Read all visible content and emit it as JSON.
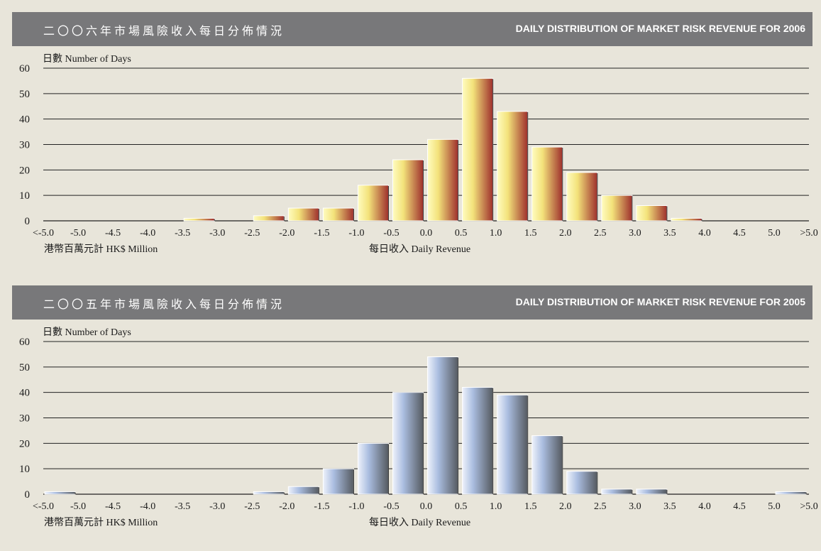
{
  "charts": [
    {
      "title_zh": "二〇〇六年市場風險收入每日分佈情況",
      "title_en": "DAILY DISTRIBUTION OF MARKET RISK REVENUE FOR 2006",
      "ylabel": "日數 Number of Days",
      "xlabel_left": "港幣百萬元計 HK$ Million",
      "xlabel_center": "每日收入 Daily Revenue"
    },
    {
      "title_zh": "二〇〇五年市場風險收入每日分佈情況",
      "title_en": "DAILY DISTRIBUTION OF MARKET RISK REVENUE FOR 2005",
      "ylabel": "日數 Number of Days",
      "xlabel_left": "港幣百萬元計 HK$ Million",
      "xlabel_center": "每日收入 Daily Revenue"
    }
  ],
  "chart_data": [
    {
      "type": "bar",
      "title": "DAILY DISTRIBUTION OF MARKET RISK REVENUE FOR 2006",
      "ylabel": "日數 Number of Days",
      "xlabel": "每日收入 Daily Revenue",
      "x_ticks": [
        "<-5.0",
        "-5.0",
        "-4.5",
        "-4.0",
        "-3.5",
        "-3.0",
        "-2.5",
        "-2.0",
        "-1.5",
        "-1.0",
        "-0.5",
        "0.0",
        "0.5",
        "1.0",
        "1.5",
        "2.0",
        "2.5",
        "3.0",
        "3.5",
        "4.0",
        "4.5",
        "5.0",
        ">5.0"
      ],
      "values": [
        0,
        0,
        0,
        0,
        1,
        0,
        2,
        5,
        5,
        14,
        24,
        32,
        56,
        43,
        29,
        19,
        10,
        6,
        1,
        0,
        0,
        0
      ],
      "ylim": [
        0,
        60
      ],
      "yticks": [
        0,
        10,
        20,
        30,
        40,
        50,
        60
      ],
      "grid": true,
      "colors": {
        "light": "#fffcc0",
        "mid": "#f3e27a",
        "dark": "#9e2f2c"
      }
    },
    {
      "type": "bar",
      "title": "DAILY DISTRIBUTION OF MARKET RISK REVENUE FOR 2005",
      "ylabel": "日數 Number of Days",
      "xlabel": "每日收入 Daily Revenue",
      "x_ticks": [
        "<-5.0",
        "-5.0",
        "-4.5",
        "-4.0",
        "-3.5",
        "-3.0",
        "-2.5",
        "-2.0",
        "-1.5",
        "-1.0",
        "-0.5",
        "0.0",
        "0.5",
        "1.0",
        "1.5",
        "2.0",
        "2.5",
        "3.0",
        "3.5",
        "4.0",
        "4.5",
        "5.0",
        ">5.0"
      ],
      "values": [
        1,
        0,
        0,
        0,
        0,
        0,
        1,
        3,
        10,
        20,
        40,
        54,
        42,
        39,
        23,
        9,
        2,
        2,
        0,
        0,
        0,
        1
      ],
      "ylim": [
        0,
        60
      ],
      "yticks": [
        0,
        10,
        20,
        30,
        40,
        50,
        60
      ],
      "grid": true,
      "colors": {
        "light": "#eef2fb",
        "mid": "#aabde0",
        "dark": "#555a60"
      }
    }
  ]
}
